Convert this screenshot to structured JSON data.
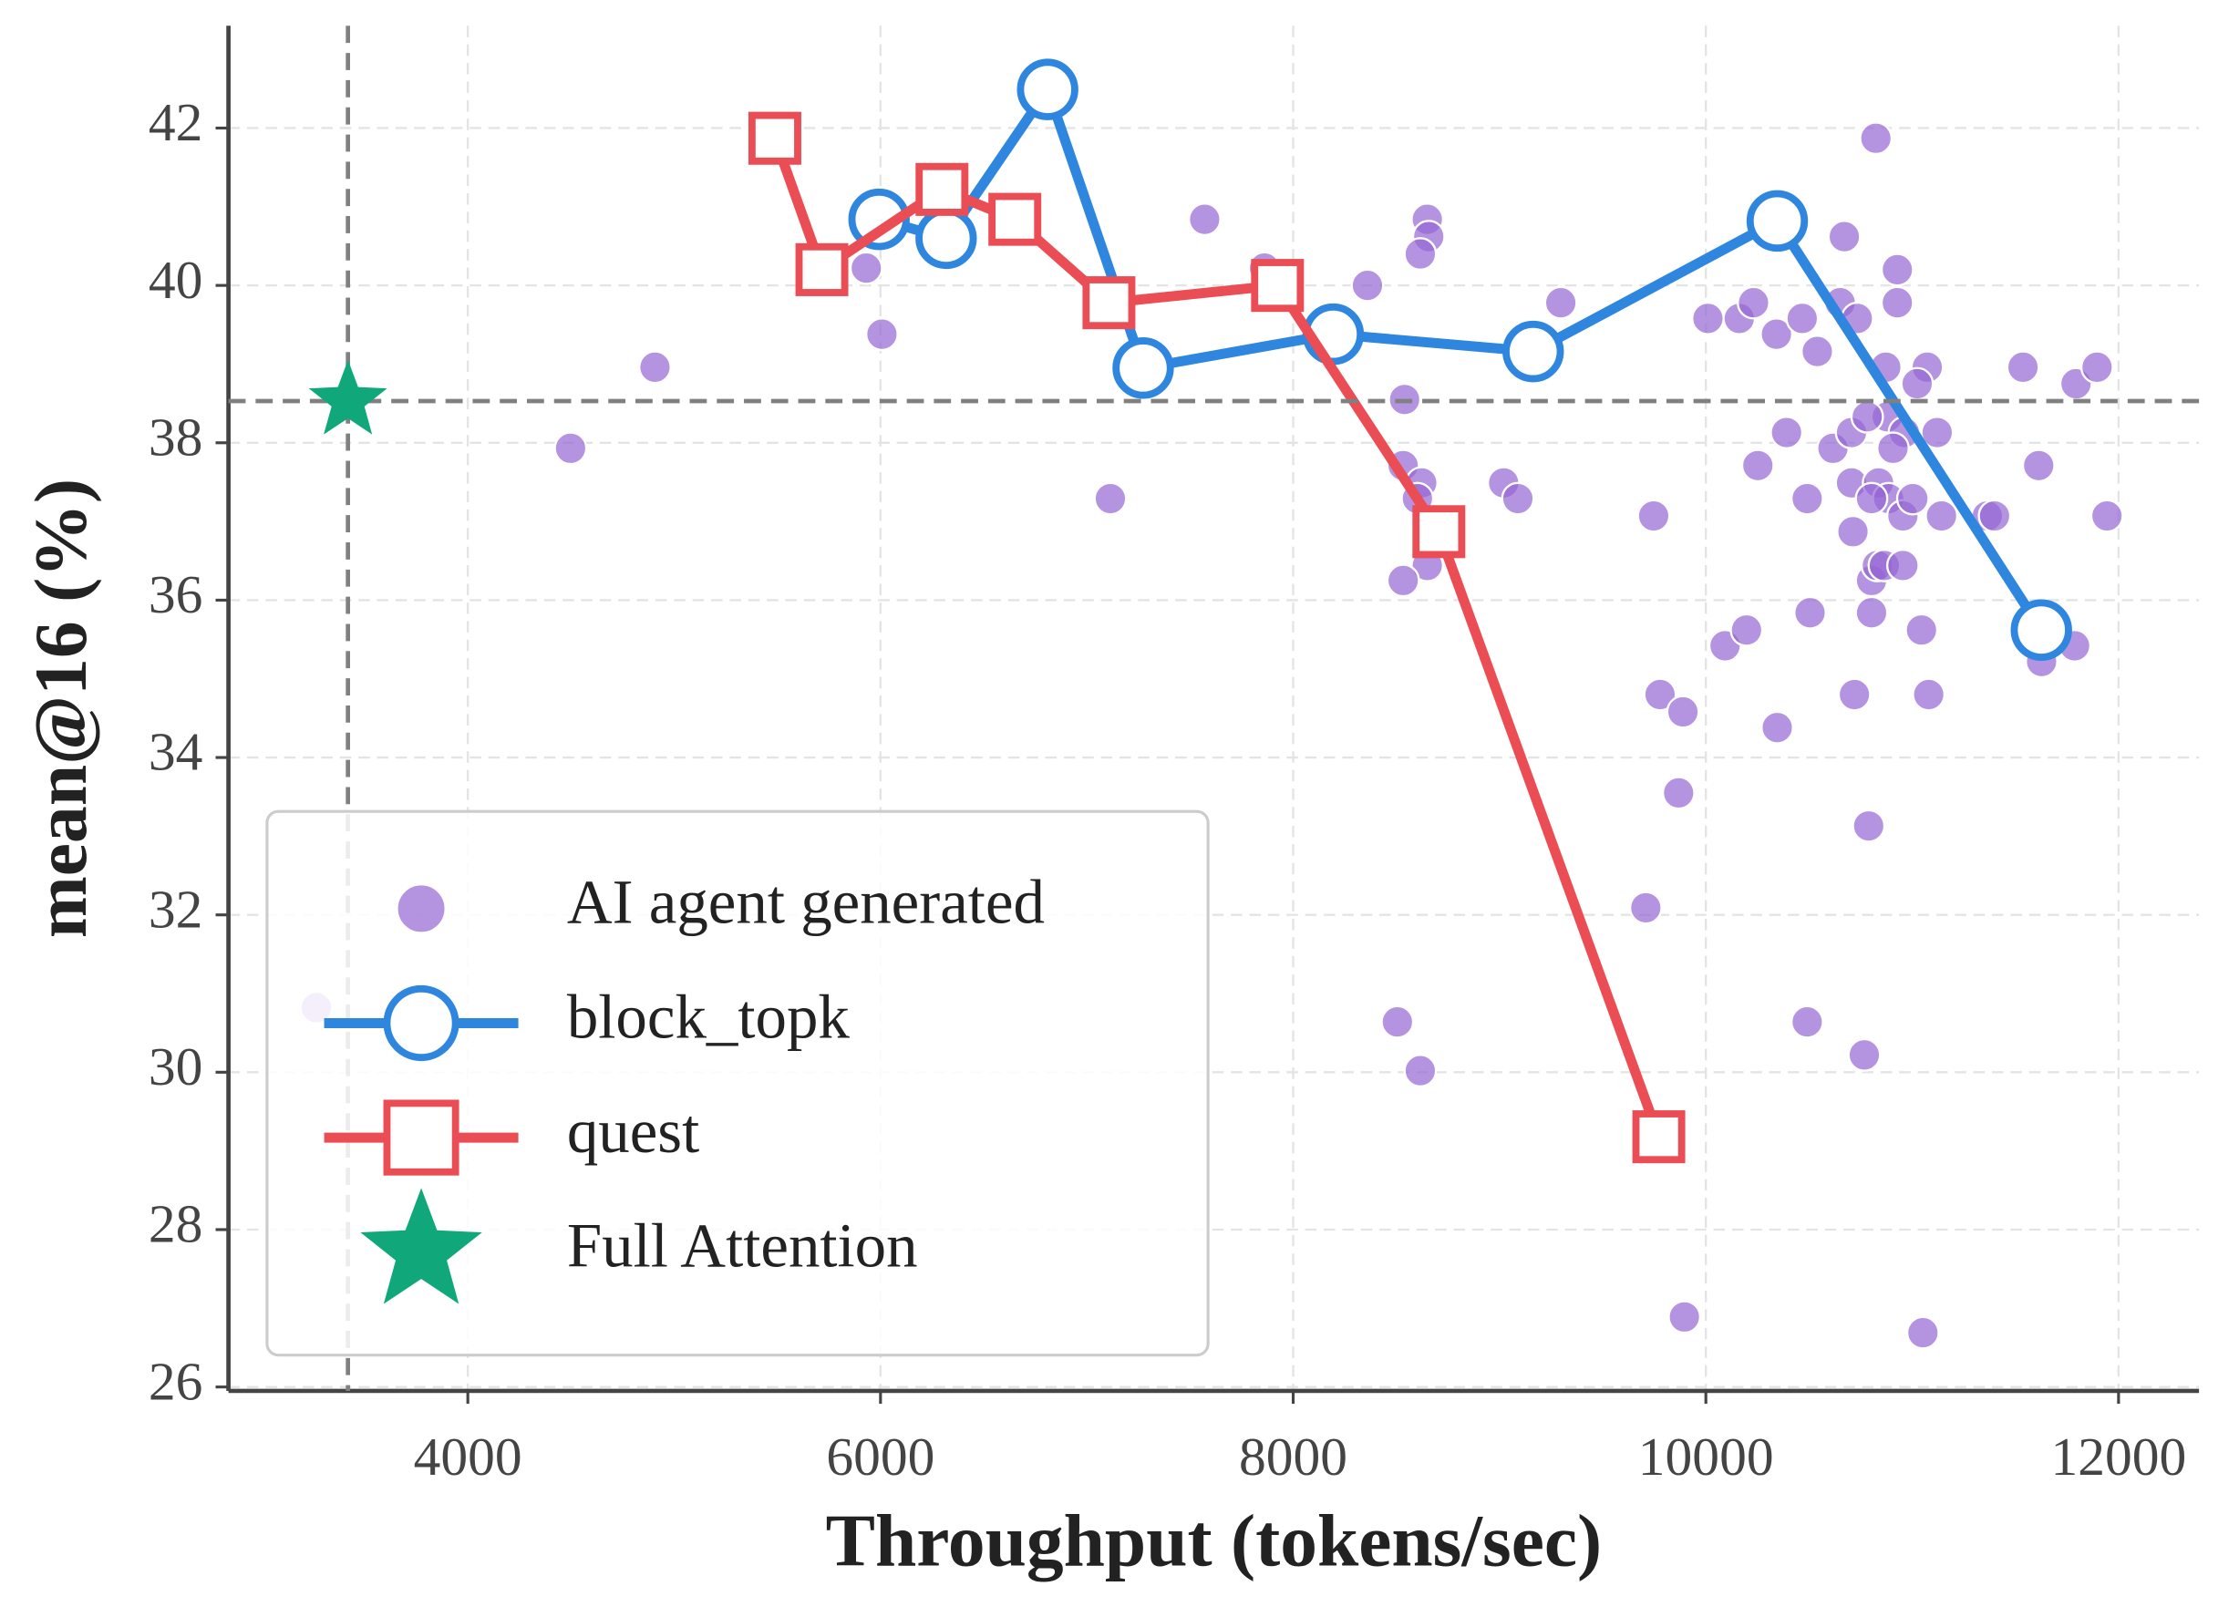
{
  "chart_data": {
    "type": "scatter",
    "x_label": "Throughput (tokens/sec)",
    "y_label": "mean@16 (%)",
    "xlim": [
      2840,
      12390
    ],
    "ylim": [
      25.95,
      43.3
    ],
    "xticks": [
      4000,
      6000,
      8000,
      10000,
      12000
    ],
    "yticks": [
      26,
      28,
      30,
      32,
      34,
      36,
      38,
      40,
      42
    ],
    "grid": true,
    "legend": "lower left",
    "series": [
      {
        "name": "AI agent generated",
        "type": "scatter",
        "marker": "circle",
        "color": "#9467d4",
        "x": [
          3266,
          4498,
          4907,
          5931,
          6007,
          7571,
          7114,
          7861,
          8360,
          8540,
          8533,
          8623,
          8602,
          8650,
          8533,
          8650,
          8657,
          8616,
          9020,
          9089,
          8505,
          8616,
          9297,
          9747,
          10010,
          10162,
          10231,
          10342,
          10467,
          10391,
          10252,
          10093,
          10197,
          9778,
          9889,
          9868,
          9709,
          9896,
          10346,
          10491,
          10505,
          10491,
          10540,
          10671,
          10651,
          10734,
          10824,
          10928,
          10928,
          10872,
          11073,
          11024,
          10879,
          10962,
          11121,
          10616,
          10706,
          10782,
          10907,
          10706,
          10837,
          10886,
          10803,
          10955,
          11003,
          10713,
          10803,
          10831,
          10865,
          10955,
          10803,
          11045,
          10720,
          11080,
          10789,
          10768,
          11052,
          11142,
          11364,
          11399,
          11537,
          11613,
          11627,
          11787,
          11794,
          11896,
          11944,
          11634
        ],
        "y": [
          30.82,
          37.93,
          38.96,
          40.22,
          39.38,
          40.84,
          37.29,
          40.22,
          40.0,
          38.55,
          37.71,
          37.49,
          37.29,
          36.44,
          36.25,
          40.84,
          40.62,
          40.4,
          37.49,
          37.29,
          30.64,
          30.02,
          39.78,
          37.07,
          39.58,
          39.58,
          39.78,
          39.38,
          39.58,
          38.13,
          37.71,
          35.42,
          35.62,
          34.8,
          34.58,
          33.55,
          32.09,
          26.89,
          34.38,
          30.64,
          35.84,
          37.29,
          39.16,
          40.62,
          39.78,
          39.58,
          41.87,
          40.2,
          39.78,
          38.96,
          38.96,
          38.75,
          38.33,
          38.13,
          38.13,
          37.93,
          38.13,
          38.33,
          37.93,
          37.49,
          37.49,
          37.29,
          37.29,
          37.07,
          37.29,
          36.87,
          36.25,
          36.44,
          36.44,
          36.44,
          35.84,
          35.62,
          34.8,
          34.8,
          33.13,
          30.22,
          26.69,
          37.07,
          37.07,
          37.07,
          38.96,
          37.71,
          35.22,
          35.42,
          38.75,
          38.96,
          37.07,
          35.62
        ]
      },
      {
        "name": "block_topk",
        "type": "line",
        "marker": "circle",
        "color": "#2e86de",
        "x": [
          5993,
          6318,
          6810,
          7273,
          8194,
          9163,
          10346,
          11626
        ],
        "y": [
          40.84,
          40.6,
          42.49,
          38.95,
          39.38,
          39.16,
          40.82,
          35.62
        ]
      },
      {
        "name": "quest",
        "type": "line",
        "marker": "square",
        "color": "#eb4d55",
        "x": [
          5488,
          5716,
          6298,
          6651,
          7107,
          7924,
          8706,
          9772
        ],
        "y": [
          41.87,
          40.2,
          41.22,
          40.84,
          39.78,
          40.0,
          36.87,
          29.18
        ]
      },
      {
        "name": "Full Attention",
        "type": "scatter",
        "marker": "star",
        "color": "#10a87a",
        "reference_lines": true,
        "x": [
          3419
        ],
        "y": [
          38.53
        ]
      }
    ]
  }
}
